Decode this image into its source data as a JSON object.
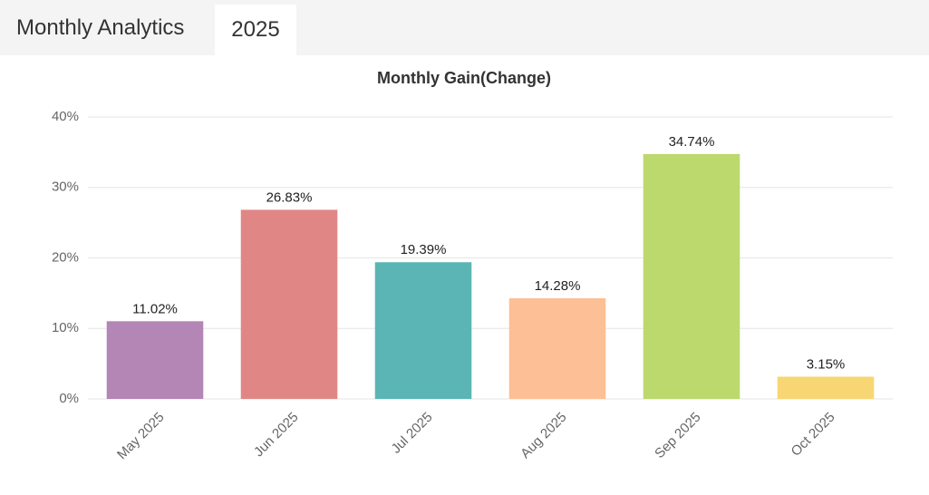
{
  "header": {
    "title": "Monthly Analytics",
    "tab": "2025"
  },
  "chart_data": {
    "type": "bar",
    "title": "Monthly Gain(Change)",
    "categories": [
      "May 2025",
      "Jun 2025",
      "Jul 2025",
      "Aug 2025",
      "Sep 2025",
      "Oct 2025"
    ],
    "values": [
      11.02,
      26.83,
      19.39,
      14.28,
      34.74,
      3.15
    ],
    "value_labels": [
      "11.02%",
      "26.83%",
      "19.39%",
      "14.28%",
      "34.74%",
      "3.15%"
    ],
    "colors": [
      "#b386b5",
      "#e08785",
      "#5bb5b5",
      "#fdbf95",
      "#bbd96d",
      "#f7d673"
    ],
    "ylim": [
      0,
      40
    ],
    "yticks": [
      {
        "value": 0,
        "label": "0%"
      },
      {
        "value": 10,
        "label": "10%"
      },
      {
        "value": 20,
        "label": "20%"
      },
      {
        "value": 30,
        "label": "30%"
      },
      {
        "value": 40,
        "label": "40%"
      }
    ],
    "grid": true
  }
}
